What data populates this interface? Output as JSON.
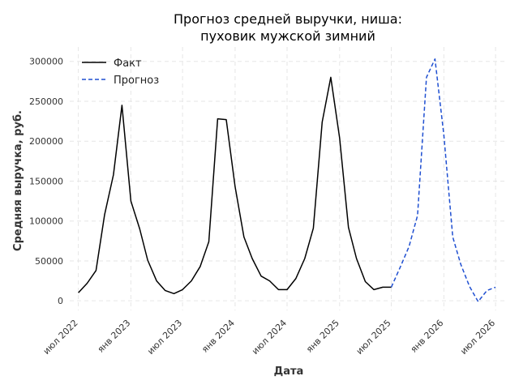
{
  "chart_data": {
    "type": "line",
    "title_line1": "Прогноз средней выручки, ниша:",
    "title_line2": "пуховик мужской зимний",
    "xlabel": "Дата",
    "ylabel": "Средняя выручка, руб.",
    "ylim": [
      -12000,
      318000
    ],
    "yticks": [
      0,
      50000,
      100000,
      150000,
      200000,
      250000,
      300000
    ],
    "xlim": [
      "2022-06-01",
      "2026-08-01"
    ],
    "xticks": [
      {
        "date": "2022-07-01",
        "label": "июл 2022"
      },
      {
        "date": "2023-01-01",
        "label": "янв 2023"
      },
      {
        "date": "2023-07-01",
        "label": "июл 2023"
      },
      {
        "date": "2024-01-01",
        "label": "янв 2024"
      },
      {
        "date": "2024-07-01",
        "label": "июл 2024"
      },
      {
        "date": "2025-01-01",
        "label": "янв 2025"
      },
      {
        "date": "2025-07-01",
        "label": "июл 2025"
      },
      {
        "date": "2026-01-01",
        "label": "янв 2026"
      },
      {
        "date": "2026-07-01",
        "label": "июл 2026"
      }
    ],
    "grid": true,
    "legend_position": "top-left",
    "series": [
      {
        "name": "Факт",
        "color": "#000000",
        "style": "solid",
        "points": [
          [
            "2022-07-01",
            10000
          ],
          [
            "2022-08-01",
            22000
          ],
          [
            "2022-09-01",
            38000
          ],
          [
            "2022-10-01",
            108000
          ],
          [
            "2022-11-01",
            158000
          ],
          [
            "2022-12-01",
            245000
          ],
          [
            "2023-01-01",
            125000
          ],
          [
            "2023-02-01",
            90000
          ],
          [
            "2023-03-01",
            51000
          ],
          [
            "2023-04-01",
            25000
          ],
          [
            "2023-05-01",
            13000
          ],
          [
            "2023-06-01",
            9000
          ],
          [
            "2023-07-01",
            14000
          ],
          [
            "2023-08-01",
            25000
          ],
          [
            "2023-09-01",
            43000
          ],
          [
            "2023-10-01",
            74000
          ],
          [
            "2023-11-01",
            228000
          ],
          [
            "2023-12-01",
            227000
          ],
          [
            "2024-01-01",
            143000
          ],
          [
            "2024-02-01",
            80000
          ],
          [
            "2024-03-01",
            53000
          ],
          [
            "2024-04-01",
            31000
          ],
          [
            "2024-05-01",
            25000
          ],
          [
            "2024-06-01",
            14000
          ],
          [
            "2024-07-01",
            14000
          ],
          [
            "2024-08-01",
            28000
          ],
          [
            "2024-09-01",
            53000
          ],
          [
            "2024-10-01",
            91000
          ],
          [
            "2024-11-01",
            224000
          ],
          [
            "2024-12-01",
            280000
          ],
          [
            "2025-01-01",
            204000
          ],
          [
            "2025-02-01",
            92000
          ],
          [
            "2025-03-01",
            53000
          ],
          [
            "2025-04-01",
            24000
          ],
          [
            "2025-05-01",
            14000
          ],
          [
            "2025-06-01",
            17000
          ],
          [
            "2025-07-01",
            17000
          ]
        ]
      },
      {
        "name": "Прогноз",
        "color": "#1f4fd1",
        "style": "dashed",
        "points": [
          [
            "2025-07-01",
            17000
          ],
          [
            "2025-08-01",
            42000
          ],
          [
            "2025-09-01",
            68000
          ],
          [
            "2025-10-01",
            107000
          ],
          [
            "2025-11-01",
            280000
          ],
          [
            "2025-12-01",
            303000
          ],
          [
            "2026-01-01",
            208000
          ],
          [
            "2026-02-01",
            80000
          ],
          [
            "2026-03-01",
            46000
          ],
          [
            "2026-04-01",
            18000
          ],
          [
            "2026-05-01",
            -1000
          ],
          [
            "2026-06-01",
            13000
          ],
          [
            "2026-07-01",
            17000
          ]
        ]
      }
    ]
  }
}
